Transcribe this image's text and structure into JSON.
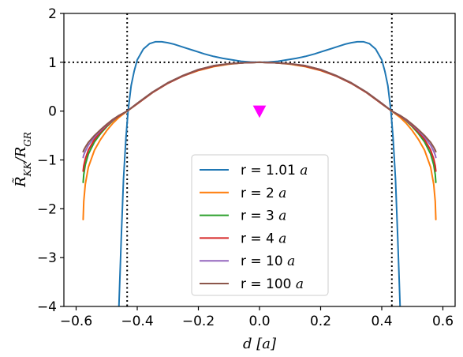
{
  "chart_data": {
    "type": "line",
    "title": "",
    "xlabel": "d [a]",
    "ylabel": "R̃_KK/R_GR",
    "xlim": [
      -0.64,
      0.64
    ],
    "ylim": [
      -4,
      2
    ],
    "xticks": [
      -0.6,
      -0.4,
      -0.2,
      0.0,
      0.2,
      0.4,
      0.6
    ],
    "xtick_labels": [
      "−0.6",
      "−0.4",
      "−0.2",
      "0.0",
      "0.2",
      "0.4",
      "0.6"
    ],
    "yticks": [
      -4,
      -3,
      -2,
      -1,
      0,
      1,
      2
    ],
    "ytick_labels": [
      "−4",
      "−3",
      "−2",
      "−1",
      "0",
      "1",
      "2"
    ],
    "grid": false,
    "legend_position": "lower-center",
    "reference_lines": {
      "horizontal_y": 1,
      "vertical_x": [
        -0.433,
        0.433
      ],
      "style": "dotted",
      "color": "#000000"
    },
    "marker": {
      "shape": "triangle-down",
      "x": 0,
      "y": 0,
      "color": "#ff00ff"
    },
    "series": [
      {
        "name": "r = 1.01 a",
        "name_text": "r = 1.01 ",
        "name_unit": "a",
        "color": "#1f77b4",
        "x": [
          -0.46,
          -0.452,
          -0.445,
          -0.437,
          -0.43,
          -0.42,
          -0.41,
          -0.4,
          -0.38,
          -0.36,
          -0.34,
          -0.32,
          -0.3,
          -0.28,
          -0.26,
          -0.24,
          -0.22,
          -0.2,
          -0.18,
          -0.15,
          -0.12,
          -0.09,
          -0.06,
          -0.03,
          0,
          0.03,
          0.06,
          0.09,
          0.12,
          0.15,
          0.18,
          0.2,
          0.22,
          0.24,
          0.26,
          0.28,
          0.3,
          0.32,
          0.34,
          0.36,
          0.38,
          0.4,
          0.41,
          0.42,
          0.43,
          0.437,
          0.445,
          0.452,
          0.46
        ],
        "y": [
          -4,
          -2.55,
          -1.4,
          -0.55,
          0,
          0.52,
          0.82,
          1.05,
          1.27,
          1.38,
          1.42,
          1.42,
          1.4,
          1.37,
          1.33,
          1.29,
          1.25,
          1.21,
          1.17,
          1.12,
          1.08,
          1.05,
          1.02,
          1.005,
          1,
          1.005,
          1.02,
          1.05,
          1.08,
          1.12,
          1.17,
          1.21,
          1.25,
          1.29,
          1.33,
          1.37,
          1.4,
          1.42,
          1.42,
          1.38,
          1.27,
          1.05,
          0.82,
          0.52,
          0,
          -0.55,
          -1.4,
          -2.55,
          -4
        ]
      },
      {
        "name": "r = 2 a",
        "name_text": "r = 2 ",
        "name_unit": "a",
        "color": "#ff7f0e",
        "x": [
          -0.577,
          -0.575,
          -0.57,
          -0.56,
          -0.54,
          -0.52,
          -0.5,
          -0.48,
          -0.46,
          -0.433,
          -0.4,
          -0.35,
          -0.3,
          -0.25,
          -0.2,
          -0.15,
          -0.1,
          -0.05,
          0,
          0.05,
          0.1,
          0.15,
          0.2,
          0.25,
          0.3,
          0.35,
          0.4,
          0.433,
          0.46,
          0.48,
          0.5,
          0.52,
          0.54,
          0.56,
          0.57,
          0.575,
          0.577
        ],
        "y": [
          -2.22,
          -1.85,
          -1.5,
          -1.15,
          -0.8,
          -0.58,
          -0.4,
          -0.25,
          -0.13,
          0,
          0.15,
          0.38,
          0.57,
          0.72,
          0.83,
          0.91,
          0.96,
          0.99,
          1,
          0.99,
          0.96,
          0.91,
          0.83,
          0.72,
          0.57,
          0.38,
          0.15,
          0,
          -0.13,
          -0.25,
          -0.4,
          -0.58,
          -0.8,
          -1.15,
          -1.5,
          -1.85,
          -2.22
        ]
      },
      {
        "name": "r = 3 a",
        "name_text": "r = 3 ",
        "name_unit": "a",
        "color": "#2ca02c",
        "x": [
          -0.577,
          -0.575,
          -0.57,
          -0.56,
          -0.54,
          -0.52,
          -0.5,
          -0.48,
          -0.46,
          -0.433,
          -0.4,
          -0.35,
          -0.3,
          -0.25,
          -0.2,
          -0.15,
          -0.1,
          -0.05,
          0,
          0.05,
          0.1,
          0.15,
          0.2,
          0.25,
          0.3,
          0.35,
          0.4,
          0.433,
          0.46,
          0.48,
          0.5,
          0.52,
          0.54,
          0.56,
          0.57,
          0.575,
          0.577
        ],
        "y": [
          -1.46,
          -1.3,
          -1.1,
          -0.88,
          -0.63,
          -0.46,
          -0.32,
          -0.2,
          -0.1,
          0,
          0.15,
          0.38,
          0.57,
          0.72,
          0.84,
          0.92,
          0.97,
          0.99,
          1,
          0.99,
          0.97,
          0.92,
          0.84,
          0.72,
          0.57,
          0.38,
          0.15,
          0,
          -0.1,
          -0.2,
          -0.32,
          -0.46,
          -0.63,
          -0.88,
          -1.1,
          -1.3,
          -1.46
        ]
      },
      {
        "name": "r = 4 a",
        "name_text": "r = 4 ",
        "name_unit": "a",
        "color": "#d62728",
        "x": [
          -0.577,
          -0.575,
          -0.57,
          -0.56,
          -0.54,
          -0.52,
          -0.5,
          -0.48,
          -0.46,
          -0.433,
          -0.4,
          -0.35,
          -0.3,
          -0.25,
          -0.2,
          -0.15,
          -0.1,
          -0.05,
          0,
          0.05,
          0.1,
          0.15,
          0.2,
          0.25,
          0.3,
          0.35,
          0.4,
          0.433,
          0.46,
          0.48,
          0.5,
          0.52,
          0.54,
          0.56,
          0.57,
          0.575,
          0.577
        ],
        "y": [
          -1.23,
          -1.12,
          -0.98,
          -0.8,
          -0.58,
          -0.43,
          -0.3,
          -0.19,
          -0.1,
          0,
          0.15,
          0.38,
          0.57,
          0.72,
          0.84,
          0.92,
          0.97,
          0.99,
          1,
          0.99,
          0.97,
          0.92,
          0.84,
          0.72,
          0.57,
          0.38,
          0.15,
          0,
          -0.1,
          -0.19,
          -0.3,
          -0.43,
          -0.58,
          -0.8,
          -0.98,
          -1.12,
          -1.23
        ]
      },
      {
        "name": "r = 10 a",
        "name_text": "r = 10 ",
        "name_unit": "a",
        "color": "#9467bd",
        "x": [
          -0.577,
          -0.575,
          -0.57,
          -0.56,
          -0.54,
          -0.52,
          -0.5,
          -0.48,
          -0.46,
          -0.433,
          -0.4,
          -0.35,
          -0.3,
          -0.25,
          -0.2,
          -0.15,
          -0.1,
          -0.05,
          0,
          0.05,
          0.1,
          0.15,
          0.2,
          0.25,
          0.3,
          0.35,
          0.4,
          0.433,
          0.46,
          0.48,
          0.5,
          0.52,
          0.54,
          0.56,
          0.57,
          0.575,
          0.577
        ],
        "y": [
          -0.95,
          -0.9,
          -0.82,
          -0.7,
          -0.53,
          -0.4,
          -0.28,
          -0.18,
          -0.09,
          0,
          0.16,
          0.39,
          0.58,
          0.73,
          0.85,
          0.93,
          0.97,
          0.99,
          1,
          0.99,
          0.97,
          0.93,
          0.85,
          0.73,
          0.58,
          0.39,
          0.16,
          0,
          -0.09,
          -0.18,
          -0.28,
          -0.4,
          -0.53,
          -0.7,
          -0.82,
          -0.9,
          -0.95
        ]
      },
      {
        "name": "r = 100 a",
        "name_text": "r = 100 ",
        "name_unit": "a",
        "color": "#8c564b",
        "x": [
          -0.577,
          -0.575,
          -0.57,
          -0.56,
          -0.54,
          -0.52,
          -0.5,
          -0.48,
          -0.46,
          -0.433,
          -0.4,
          -0.35,
          -0.3,
          -0.25,
          -0.2,
          -0.15,
          -0.1,
          -0.05,
          0,
          0.05,
          0.1,
          0.15,
          0.2,
          0.25,
          0.3,
          0.35,
          0.4,
          0.433,
          0.46,
          0.48,
          0.5,
          0.52,
          0.54,
          0.56,
          0.57,
          0.575,
          0.577
        ],
        "y": [
          -0.83,
          -0.8,
          -0.74,
          -0.64,
          -0.5,
          -0.38,
          -0.27,
          -0.17,
          -0.09,
          0,
          0.16,
          0.39,
          0.58,
          0.73,
          0.85,
          0.93,
          0.97,
          0.99,
          1,
          0.99,
          0.97,
          0.93,
          0.85,
          0.73,
          0.58,
          0.39,
          0.16,
          0,
          -0.09,
          -0.17,
          -0.27,
          -0.38,
          -0.5,
          -0.64,
          -0.74,
          -0.8,
          -0.83
        ]
      }
    ]
  }
}
